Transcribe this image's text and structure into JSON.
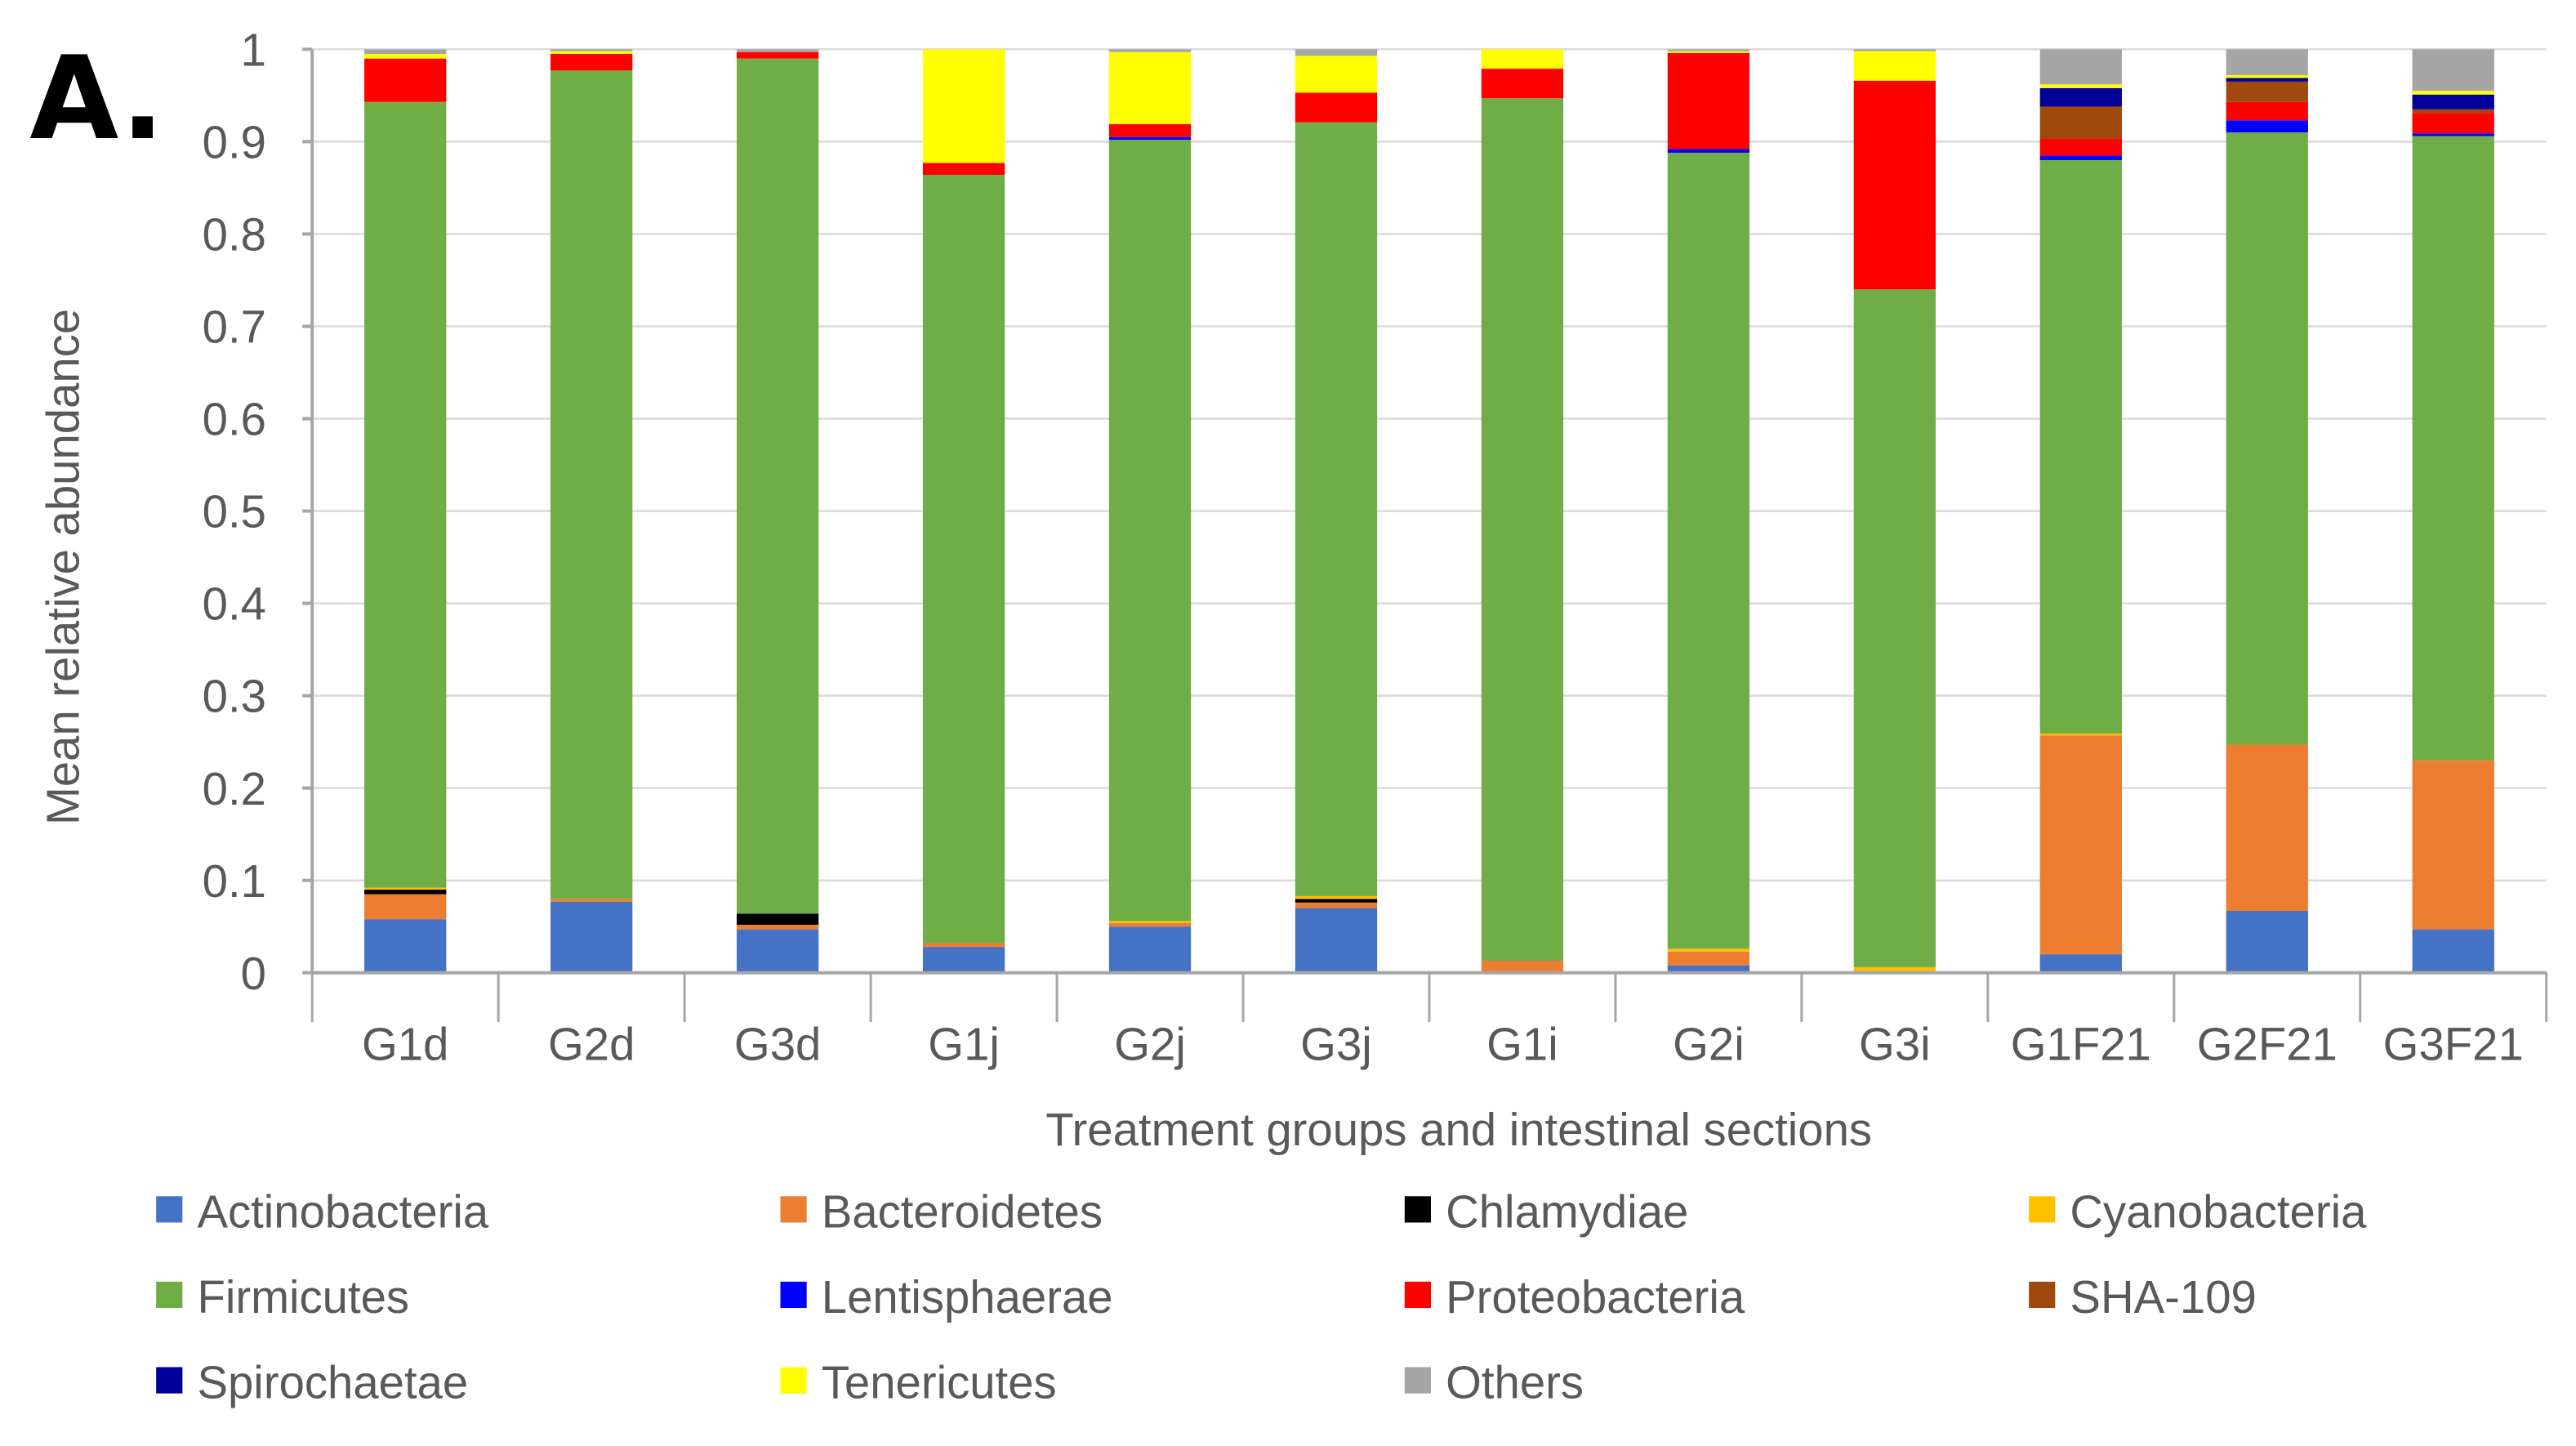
{
  "panel_label": "A.",
  "chart_data": {
    "type": "bar",
    "stacked": true,
    "title": "",
    "xlabel": "Treatment groups and intestinal sections",
    "ylabel": "Mean relative abundance",
    "ylim": [
      0,
      1
    ],
    "yticks": [
      "0",
      "0.1",
      "0.2",
      "0.3",
      "0.4",
      "0.5",
      "0.6",
      "0.7",
      "0.8",
      "0.9",
      "1"
    ],
    "grid": true,
    "legend_position": "bottom",
    "categories": [
      "G1d",
      "G2d",
      "G3d",
      "G1j",
      "G2j",
      "G3j",
      "G1i",
      "G2i",
      "G3i",
      "G1F21",
      "G2F21",
      "G3F21"
    ],
    "series": [
      {
        "name": "Actinobacteria",
        "color": "#4472C4",
        "values": [
          0.058,
          0.077,
          0.047,
          0.028,
          0.05,
          0.07,
          0.0,
          0.008,
          0.0,
          0.02,
          0.067,
          0.047
        ]
      },
      {
        "name": "Bacteroidetes",
        "color": "#ED7D31",
        "values": [
          0.027,
          0.003,
          0.005,
          0.004,
          0.004,
          0.006,
          0.013,
          0.015,
          0.0,
          0.237,
          0.18,
          0.183
        ]
      },
      {
        "name": "Chlamydiae",
        "color": "#000000",
        "values": [
          0.005,
          0.0,
          0.012,
          0.0,
          0.0,
          0.004,
          0.0,
          0.0,
          0.0,
          0.0,
          0.0,
          0.0
        ]
      },
      {
        "name": "Cyanobacteria",
        "color": "#FFC000",
        "values": [
          0.002,
          0.0,
          0.0,
          0.0,
          0.002,
          0.003,
          0.0,
          0.003,
          0.006,
          0.002,
          0.0,
          0.0
        ]
      },
      {
        "name": "Firmicutes",
        "color": "#70AD47",
        "values": [
          0.851,
          0.897,
          0.926,
          0.832,
          0.846,
          0.838,
          0.934,
          0.862,
          0.734,
          0.621,
          0.663,
          0.676
        ]
      },
      {
        "name": "Lentisphaerae",
        "color": "#0000FF",
        "values": [
          0.0,
          0.0,
          0.0,
          0.0,
          0.003,
          0.0,
          0.0,
          0.004,
          0.0,
          0.005,
          0.013,
          0.003
        ]
      },
      {
        "name": "Proteobacteria",
        "color": "#FF0000",
        "values": [
          0.047,
          0.018,
          0.007,
          0.013,
          0.014,
          0.032,
          0.032,
          0.104,
          0.226,
          0.018,
          0.02,
          0.022
        ]
      },
      {
        "name": "SHA-109",
        "color": "#9E480E",
        "values": [
          0.0,
          0.0,
          0.0,
          0.0,
          0.0,
          0.0,
          0.0,
          0.0,
          0.0,
          0.035,
          0.022,
          0.004
        ]
      },
      {
        "name": "Spirochaetae",
        "color": "#000099",
        "values": [
          0.0,
          0.0,
          0.0,
          0.0,
          0.0,
          0.0,
          0.0,
          0.0,
          0.0,
          0.02,
          0.004,
          0.016
        ]
      },
      {
        "name": "Tenericutes",
        "color": "#FFFF00",
        "values": [
          0.005,
          0.003,
          0.0,
          0.123,
          0.078,
          0.04,
          0.021,
          0.002,
          0.032,
          0.004,
          0.003,
          0.004
        ]
      },
      {
        "name": "Others",
        "color": "#A5A5A5",
        "values": [
          0.005,
          0.002,
          0.003,
          0.0,
          0.003,
          0.007,
          0.0,
          0.002,
          0.002,
          0.038,
          0.028,
          0.045
        ]
      }
    ]
  }
}
